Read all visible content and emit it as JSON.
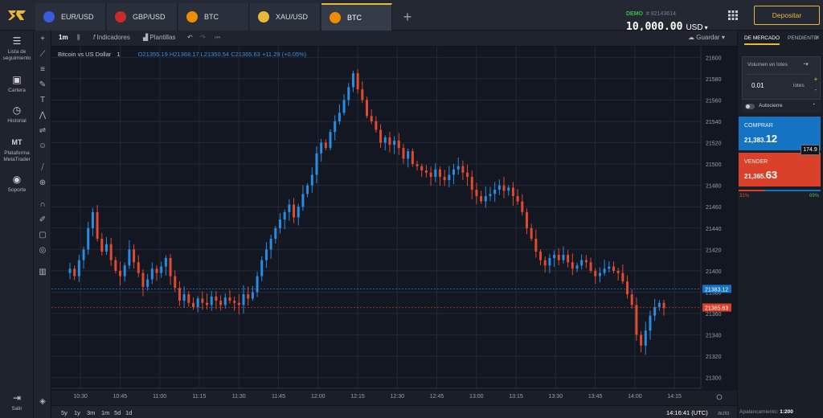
{
  "tabs": [
    {
      "label": "EUR/USD",
      "flag": "#3b5bdb"
    },
    {
      "label": "GBP/USD",
      "flag": "#c92a2a"
    },
    {
      "label": "BTC",
      "flag": "#f08c00"
    },
    {
      "label": "XAU/USD",
      "flag": "#e8b83a"
    },
    {
      "label": "BTC",
      "flag": "#f08c00",
      "active": true
    }
  ],
  "account": {
    "mode": "DEMO",
    "id": "# 82143614",
    "balance": "10,000.00",
    "currency": "USD"
  },
  "deposit_label": "Depositar",
  "nav": [
    {
      "label": "Lista de seguimiento",
      "icon": "list-icon"
    },
    {
      "label": "Cartera",
      "icon": "briefcase-icon"
    },
    {
      "label": "Historial",
      "icon": "history-icon"
    },
    {
      "label": "Plataforma MetaTrader",
      "icon": "metatrader-icon"
    },
    {
      "label": "Soporte",
      "icon": "chat-icon"
    }
  ],
  "logout_label": "Salir",
  "toolbar": {
    "interval": "1m",
    "indicators": "Indicadores",
    "templates": "Plantillas",
    "save": "Guardar"
  },
  "info": {
    "symbol": "Bitcoin vs US Dollar",
    "interval": "1",
    "ohlc": "O21355.19 H21368.17 L21350.54 C21365.63 +11.29 (+0.05%)"
  },
  "bottom": {
    "timeframes": [
      "5y",
      "1y",
      "3m",
      "1m",
      "5d",
      "1d"
    ],
    "clock": "14:16:41 (UTC)",
    "mode": "auto"
  },
  "panel": {
    "tab_market": "DE MERCADO",
    "tab_pending": "PENDIENTE",
    "volume_label": "Volumen en lotes",
    "volume_value": "0.01",
    "volume_unit": "lotes",
    "autoclose": "Autocierre",
    "buy_label": "COMPRAR",
    "buy_small": "21,383.",
    "buy_big": "12",
    "sell_label": "VENDER",
    "sell_small": "21,365.",
    "sell_big": "63",
    "spread": "174.9",
    "sell_pct": "31%",
    "buy_pct": "69%"
  },
  "leverage": {
    "label": "Apalancamiento:",
    "value": "1:200"
  },
  "colors": {
    "up": "#2a8ce0",
    "down": "#e04a2e",
    "accent": "#e8b83a"
  },
  "chart_data": {
    "type": "candlestick",
    "title": "Bitcoin vs US Dollar",
    "ylim": [
      21290,
      21610
    ],
    "y_ticks": [
      21300,
      21320,
      21340,
      21360,
      21380,
      21400,
      21420,
      21440,
      21460,
      21480,
      21500,
      21520,
      21540,
      21560,
      21580,
      21600
    ],
    "x_ticks": [
      "10:30",
      "10:45",
      "11:00",
      "11:15",
      "11:30",
      "11:45",
      "12:00",
      "12:15",
      "12:30",
      "12:45",
      "13:00",
      "13:15",
      "13:30",
      "13:45",
      "14:00",
      "14:15"
    ],
    "x_tick_minutes": [
      630,
      645,
      660,
      675,
      690,
      705,
      720,
      735,
      750,
      765,
      780,
      795,
      810,
      825,
      840,
      855
    ],
    "x_range_minutes": [
      619,
      865
    ],
    "ask": 21383.12,
    "bid": 21365.63,
    "bid_label": "21365.63",
    "ask_label": "21383.12",
    "path": [
      21402,
      21395,
      21410,
      21420,
      21440,
      21455,
      21430,
      21418,
      21425,
      21410,
      21400,
      21395,
      21405,
      21420,
      21408,
      21398,
      21385,
      21392,
      21402,
      21398,
      21404,
      21412,
      21395,
      21384,
      21372,
      21378,
      21370,
      21366,
      21374,
      21370,
      21368,
      21376,
      21372,
      21368,
      21375,
      21372,
      21370,
      21368,
      21378,
      21374,
      21380,
      21395,
      21410,
      21420,
      21430,
      21440,
      21448,
      21455,
      21462,
      21450,
      21460,
      21472,
      21480,
      21490,
      21510,
      21520,
      21515,
      21530,
      21540,
      21548,
      21560,
      21572,
      21585,
      21570,
      21560,
      21545,
      21540,
      21532,
      21520,
      21525,
      21518,
      21522,
      21515,
      21505,
      21512,
      21500,
      21498,
      21494,
      21492,
      21488,
      21495,
      21488,
      21485,
      21490,
      21495,
      21498,
      21492,
      21488,
      21476,
      21470,
      21465,
      21470,
      21472,
      21476,
      21480,
      21475,
      21478,
      21470,
      21465,
      21455,
      21440,
      21430,
      21418,
      21410,
      21405,
      21412,
      21415,
      21410,
      21415,
      21408,
      21402,
      21405,
      21410,
      21408,
      21400,
      21395,
      21398,
      21402,
      21404,
      21400,
      21398,
      21390,
      21378,
      21368,
      21340,
      21330,
      21344,
      21358,
      21366,
      21370,
      21365
    ]
  }
}
